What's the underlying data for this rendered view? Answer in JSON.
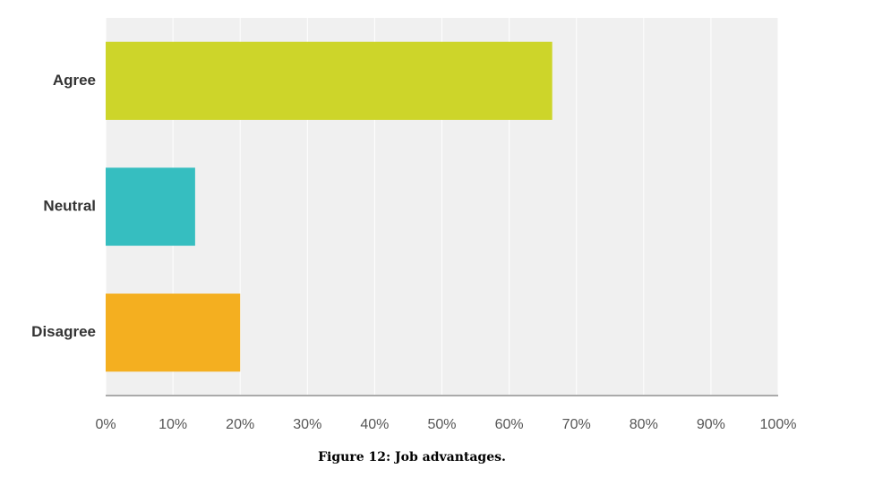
{
  "chart_data": {
    "type": "hbar",
    "caption": "Figure 12: Job advantages.",
    "categories": [
      "Agree",
      "Neutral",
      "Disagree"
    ],
    "values": [
      66.4,
      13.3,
      20
    ],
    "colors": [
      "#cdd52a",
      "#36bec0",
      "#f4af20"
    ],
    "xlim": [
      0,
      100
    ],
    "xticks": [
      {
        "value": 0,
        "label": "0%"
      },
      {
        "value": 10,
        "label": "10%"
      },
      {
        "value": 20,
        "label": "20%"
      },
      {
        "value": 30,
        "label": "30%"
      },
      {
        "value": 40,
        "label": "40%"
      },
      {
        "value": 50,
        "label": "50%"
      },
      {
        "value": 60,
        "label": "60%"
      },
      {
        "value": 70,
        "label": "70%"
      },
      {
        "value": 80,
        "label": "80%"
      },
      {
        "value": 90,
        "label": "90%"
      },
      {
        "value": 100,
        "label": "100%"
      }
    ],
    "grid": true
  }
}
